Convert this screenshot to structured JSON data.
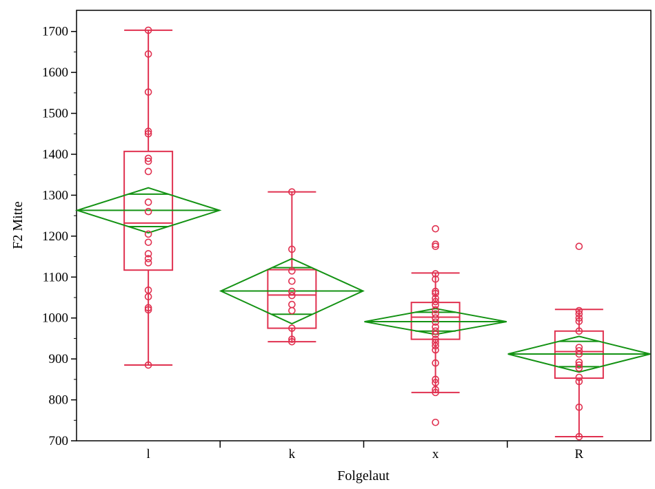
{
  "chart_data": {
    "type": "box",
    "title": "",
    "xlabel": "Folgelaut",
    "ylabel": "F2 Mitte",
    "ylim": [
      700,
      1750
    ],
    "y_ticks": [
      700,
      800,
      900,
      1000,
      1100,
      1200,
      1300,
      1400,
      1500,
      1600,
      1700
    ],
    "categories": [
      "l",
      "k",
      "x",
      "R"
    ],
    "colors": {
      "box": "#e0304f",
      "points": "#e0304f",
      "diamond": "#139213",
      "axis": "#000000"
    },
    "boxes": [
      {
        "category": "l",
        "min": 885,
        "q1": 1117,
        "median": 1232,
        "q3": 1407,
        "max": 1703
      },
      {
        "category": "k",
        "min": 942,
        "q1": 975,
        "median": 1056,
        "q3": 1118,
        "max": 1308
      },
      {
        "category": "x",
        "min": 818,
        "q1": 948,
        "median": 1002,
        "q3": 1038,
        "max": 1110
      },
      {
        "category": "R",
        "min": 710,
        "q1": 853,
        "median": 918,
        "q3": 968,
        "max": 1021
      }
    ],
    "means_diamonds": [
      {
        "category": "l",
        "mean": 1263,
        "upper": 1318,
        "lower": 1208
      },
      {
        "category": "k",
        "mean": 1066,
        "upper": 1145,
        "lower": 986
      },
      {
        "category": "x",
        "mean": 991,
        "upper": 1023,
        "lower": 960
      },
      {
        "category": "R",
        "mean": 912,
        "upper": 955,
        "lower": 868
      }
    ],
    "points": [
      {
        "category": "l",
        "values": [
          1703,
          1645,
          1552,
          1456,
          1450,
          1390,
          1383,
          1358,
          1283,
          1260,
          1205,
          1185,
          1157,
          1145,
          1135,
          1068,
          1052,
          1025,
          1020,
          885
        ]
      },
      {
        "category": "k",
        "values": [
          1308,
          1168,
          1115,
          1090,
          1065,
          1055,
          1033,
          1018,
          975,
          948,
          942
        ]
      },
      {
        "category": "x",
        "values": [
          1218,
          1180,
          1175,
          1108,
          1095,
          1065,
          1060,
          1048,
          1040,
          1032,
          1020,
          1010,
          1000,
          990,
          978,
          968,
          960,
          948,
          940,
          932,
          922,
          890,
          850,
          842,
          825,
          818,
          745
        ]
      },
      {
        "category": "R",
        "values": [
          1175,
          1018,
          1010,
          1000,
          992,
          968,
          928,
          920,
          912,
          892,
          885,
          878,
          855,
          845,
          782,
          710
        ]
      }
    ]
  }
}
